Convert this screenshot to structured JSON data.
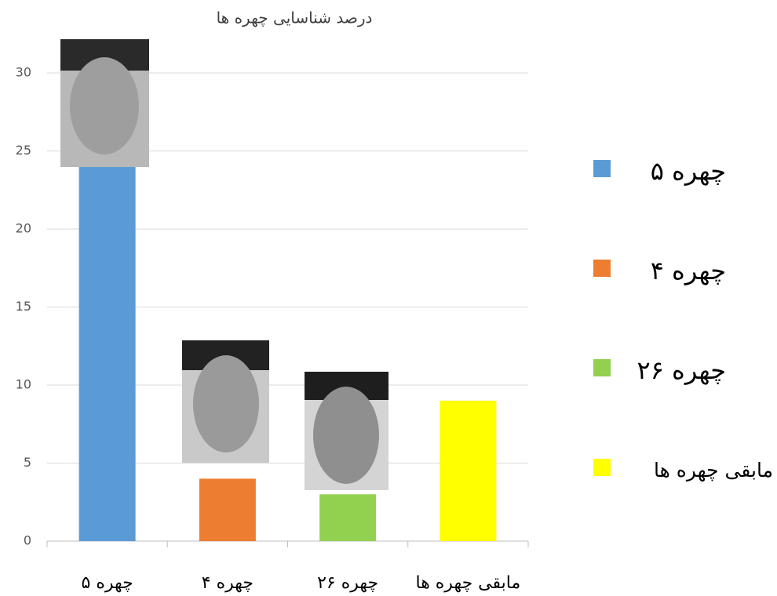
{
  "chart_data": {
    "type": "bar",
    "title": "درصد شناسایی چهره ها",
    "categories": [
      "چهره ۵",
      "چهره ۴",
      "چهره ۲۶",
      "مابقی چهره ها"
    ],
    "values": [
      24,
      4,
      3,
      9
    ],
    "colors": [
      "#5b9bd5",
      "#ed7d31",
      "#92d050",
      "#ffff00"
    ],
    "ylim": [
      0,
      30
    ],
    "yticks": [
      0,
      5,
      10,
      15,
      20,
      25,
      30
    ],
    "grid": true,
    "legend": "right"
  }
}
